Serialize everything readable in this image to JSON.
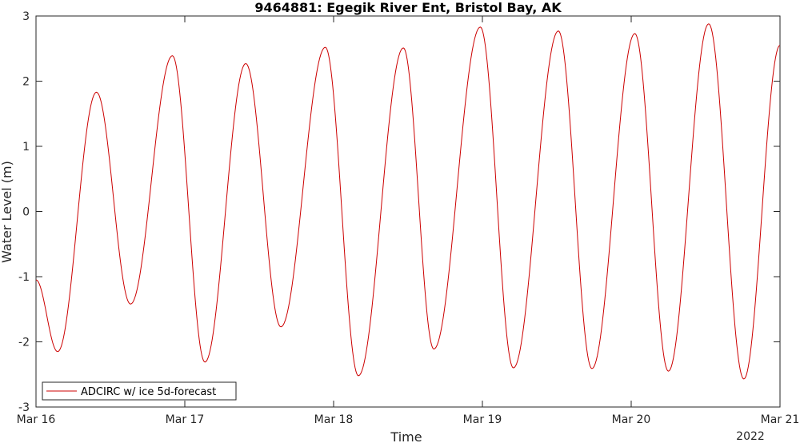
{
  "chart_data": {
    "type": "line",
    "title": "9464881: Egegik River Ent, Bristol Bay, AK",
    "xlabel": "Time",
    "ylabel": "Water Level (m)",
    "x_tick_labels": [
      "Mar 16",
      "Mar 17",
      "Mar 18",
      "Mar 19",
      "Mar 20",
      "Mar 21"
    ],
    "x_secondary_label": "2022",
    "y_tick_labels": [
      "-3",
      "-2",
      "-1",
      "0",
      "1",
      "2",
      "3"
    ],
    "xlim": [
      "2022-03-16 00:00",
      "2022-03-21 00:00"
    ],
    "ylim": [
      -3,
      3
    ],
    "grid": false,
    "legend_position": "bottom-left",
    "series": [
      {
        "name": "ADCIRC w/ ice 5d-forecast",
        "color": "#cc0000",
        "x": [
          "2022-03-16 00:00",
          "2022-03-16 03:30",
          "2022-03-16 09:45",
          "2022-03-16 15:15",
          "2022-03-16 22:00",
          "2022-03-17 03:15",
          "2022-03-17 09:50",
          "2022-03-17 15:30",
          "2022-03-17 22:40",
          "2022-03-18 04:00",
          "2022-03-18 11:15",
          "2022-03-18 16:10",
          "2022-03-18 23:40",
          "2022-03-19 05:00",
          "2022-03-19 12:15",
          "2022-03-19 17:40",
          "2022-03-20 00:35",
          "2022-03-20 06:00",
          "2022-03-20 12:30",
          "2022-03-20 18:10",
          "2022-03-21 00:00"
        ],
        "y": [
          -1.05,
          -2.15,
          1.83,
          -1.42,
          2.39,
          -2.31,
          2.27,
          -1.77,
          2.52,
          -2.52,
          2.51,
          -2.11,
          2.83,
          -2.4,
          2.77,
          -2.41,
          2.73,
          -2.45,
          2.88,
          -2.57,
          2.55
        ]
      }
    ]
  }
}
